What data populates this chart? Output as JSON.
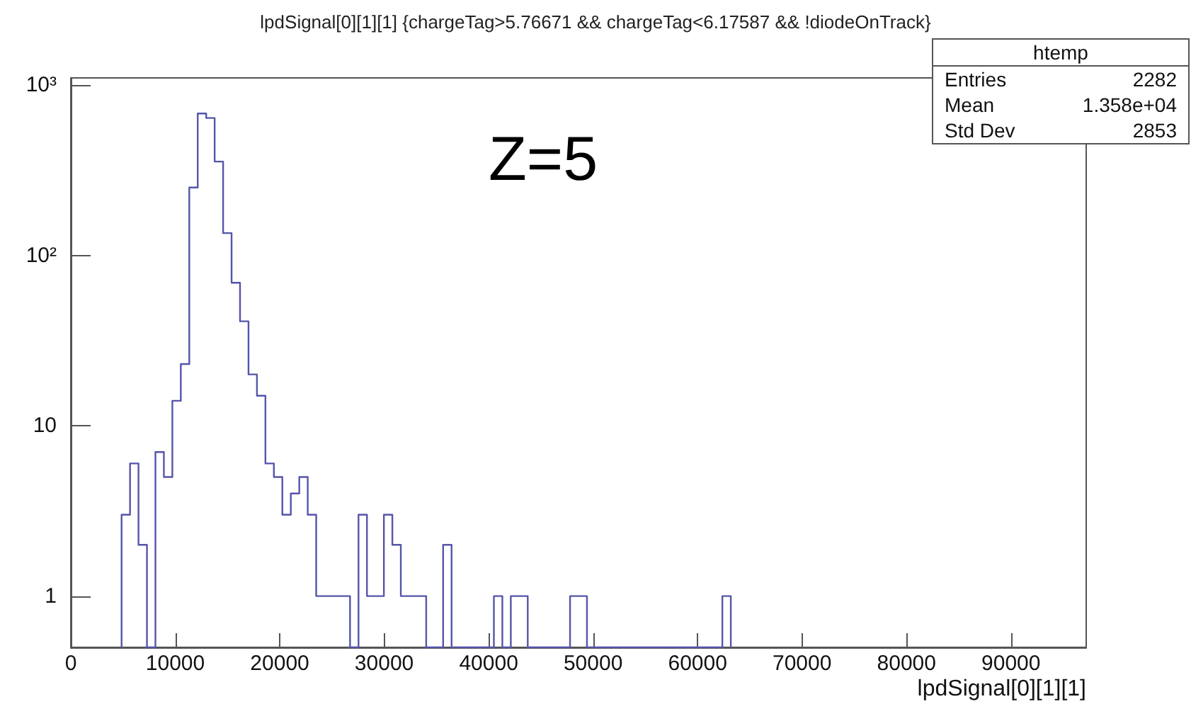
{
  "chart_data": {
    "type": "histogram",
    "title": "lpdSignal[0][1][1] {chargeTag>5.76671 && chargeTag<6.17587 && !diodeOnTrack}",
    "xlabel": "lpdSignal[0][1][1]",
    "annotations": [
      "Z=5",
      "htemp",
      "Entries",
      "2282",
      "Mean",
      "1.358e+04",
      "Std Dev",
      "2853"
    ],
    "bins": [
      4860,
      5670,
      6480,
      7290,
      8100,
      8910,
      9720,
      10530,
      11340,
      12150,
      12960,
      13770,
      14580,
      15390,
      16200,
      17010,
      17820,
      18630,
      19440,
      20250,
      21060,
      21870,
      22680,
      23490,
      24300,
      25110,
      25920,
      26730,
      27540,
      28350,
      29160,
      29970,
      30780,
      31590,
      32400,
      33210,
      34020,
      34830,
      35640,
      36450,
      37260,
      38070,
      38880,
      39690,
      40500,
      41310,
      42120,
      42930,
      43740,
      44550,
      45360,
      46170,
      46980,
      47790,
      48600,
      49410,
      50220,
      51030,
      51840,
      52650,
      53460,
      54270,
      55080,
      55890,
      56700,
      57510,
      58320,
      59130,
      59940,
      60750,
      61560,
      62370,
      63180
    ],
    "values": [
      3,
      6,
      2,
      null,
      7,
      5,
      14,
      23,
      250,
      680,
      640,
      355,
      135,
      69,
      41,
      20,
      15,
      6,
      5,
      3,
      4,
      5,
      3,
      1,
      1,
      1,
      1,
      null,
      3,
      1,
      1,
      3,
      2,
      1,
      1,
      1,
      null,
      null,
      2,
      null,
      null,
      null,
      null,
      null,
      1,
      null,
      1,
      1,
      null,
      null,
      null,
      null,
      null,
      1,
      1,
      null,
      null,
      null,
      null,
      null,
      null,
      null,
      null,
      null,
      null,
      null,
      null,
      null,
      null,
      null,
      null,
      1
    ],
    "color": "#5555aa",
    "log": "y",
    "grid": false,
    "xlim": [
      0,
      97200
    ],
    "xticks": [
      0,
      10000,
      20000,
      30000,
      40000,
      50000,
      60000,
      70000,
      80000,
      90000
    ],
    "ylim": [
      0.5,
      1100
    ],
    "yticks": [
      1,
      10,
      {
        "value": 100,
        "label": "10²"
      },
      {
        "value": 1000,
        "label": "10³"
      }
    ]
  }
}
